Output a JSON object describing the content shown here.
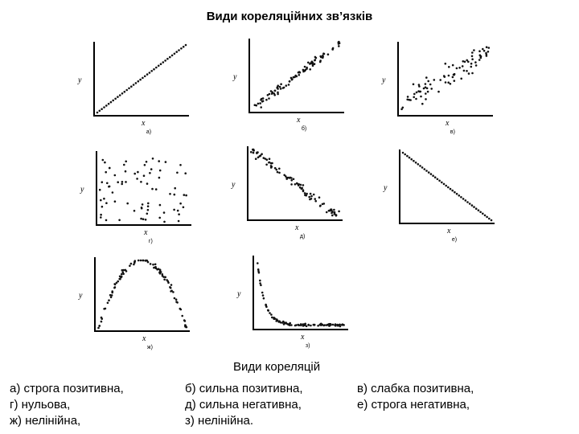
{
  "title": "Види кореляційних зв’язків",
  "axis_x": "x",
  "axis_y": "y",
  "plots": [
    {
      "id": "a",
      "label": "а)",
      "pattern": "strict-positive"
    },
    {
      "id": "b",
      "label": "б)",
      "pattern": "strong-positive"
    },
    {
      "id": "v",
      "label": "в)",
      "pattern": "weak-positive"
    },
    {
      "id": "g",
      "label": "г)",
      "pattern": "zero"
    },
    {
      "id": "d",
      "label": "д)",
      "pattern": "strong-negative"
    },
    {
      "id": "e",
      "label": "е)",
      "pattern": "strict-negative"
    },
    {
      "id": "zh",
      "label": "ж)",
      "pattern": "nonlinear-arch"
    },
    {
      "id": "z",
      "label": "з)",
      "pattern": "nonlinear-decay"
    }
  ],
  "caption": {
    "heading": "Види кореляцій",
    "col1": [
      "а) строга позитивна,",
      "г) нульова,",
      "ж) нелінійна,"
    ],
    "col2": [
      "б) сильна позитивна,",
      "д) сильна негативна,",
      "з) нелінійна."
    ],
    "col3": [
      "в) слабка позитивна,",
      "е) строга негативна,"
    ]
  }
}
